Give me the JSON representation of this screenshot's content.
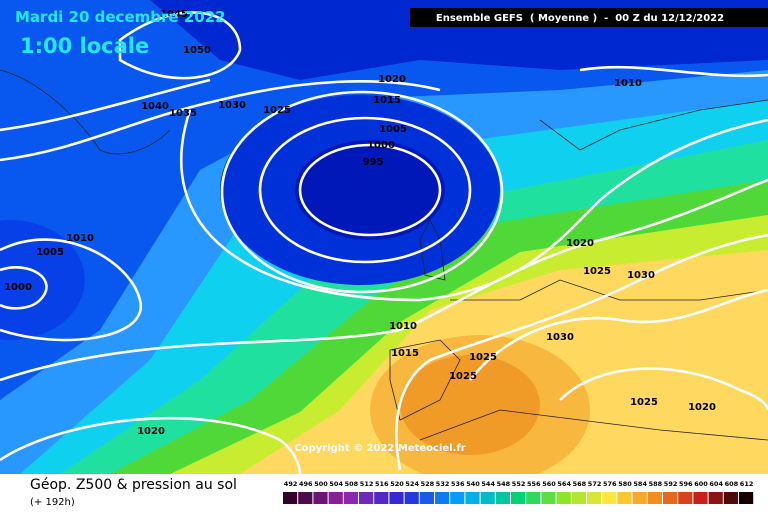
{
  "header": {
    "title": "Mardi 20 decembre 2022",
    "time": "1:00 locale",
    "model": "Ensemble GEFS  ( Moyenne )  -  00 Z du 12/12/2022"
  },
  "isobar_labels": [
    "1045",
    "1050",
    "1040",
    "1035",
    "1030",
    "1025",
    "1020",
    "1015",
    "1005",
    "1000",
    "995",
    "1010",
    "1010",
    "1005",
    "1000",
    "1020",
    "1025",
    "1030",
    "1010",
    "1015",
    "1025",
    "1025",
    "1030",
    "1025",
    "1020",
    "1020"
  ],
  "copyright": "Copyright © 2022 Meteociel.fr",
  "footer": {
    "caption": "Géop. Z500 & pression au sol",
    "lead": "(+ 192h)"
  },
  "scale": [
    492,
    496,
    500,
    504,
    508,
    512,
    516,
    520,
    524,
    528,
    532,
    536,
    540,
    544,
    548,
    552,
    556,
    560,
    564,
    568,
    572,
    576,
    580,
    584,
    588,
    592,
    596,
    600,
    604,
    608,
    612
  ]
}
